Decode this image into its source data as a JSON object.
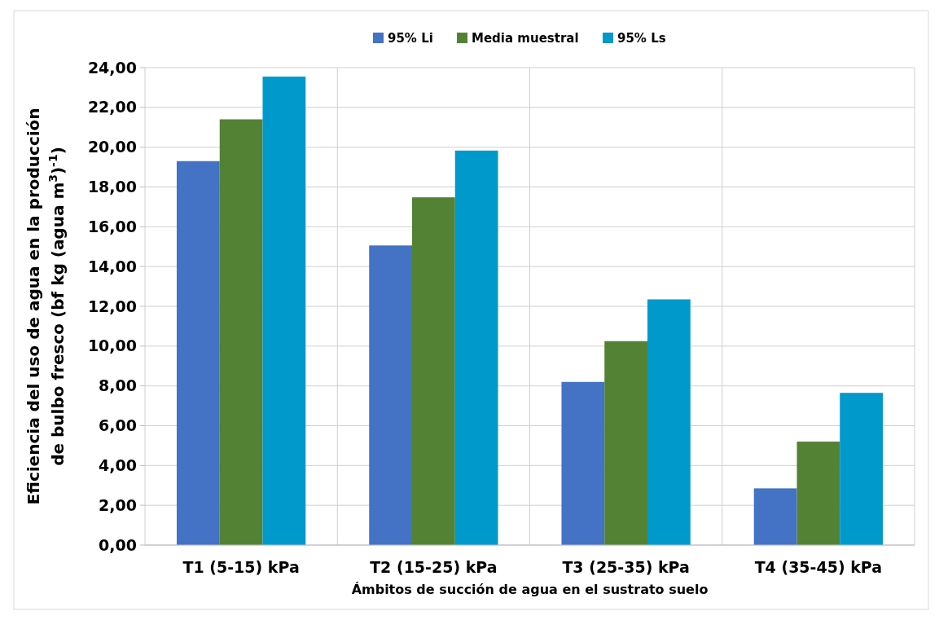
{
  "chart_data": {
    "type": "bar",
    "xlabel": "Ámbitos de succión de agua en el sustrato suelo",
    "ylabel": "Eficiencia del uso de agua en la producción de bulbo fresco (bf kg  (agua m$^{3}$)$^{-1}$)",
    "categories": [
      "T1 (5-15) kPa",
      "T2 (15-25) kPa",
      "T3 (25-35) kPa",
      "T4 (35-45) kPa"
    ],
    "series": [
      {
        "name": "95% Li",
        "color": "#4472c4",
        "values": [
          19.3,
          15.06,
          8.2,
          2.85
        ]
      },
      {
        "name": "Media muestral",
        "color": "#548235",
        "values": [
          21.4,
          17.48,
          10.25,
          5.2
        ]
      },
      {
        "name": "95% Ls",
        "color": "#0099cc",
        "values": [
          23.55,
          19.83,
          12.35,
          7.65
        ]
      }
    ],
    "ylim": [
      0,
      24
    ],
    "yticks": [
      {
        "value": 0,
        "label": "0,00"
      },
      {
        "value": 2,
        "label": "2,00"
      },
      {
        "value": 4,
        "label": "4,00"
      },
      {
        "value": 6,
        "label": "6,00"
      },
      {
        "value": 8,
        "label": "8,00"
      },
      {
        "value": 10,
        "label": "10,00"
      },
      {
        "value": 12,
        "label": "12,00"
      },
      {
        "value": 14,
        "label": "14,00"
      },
      {
        "value": 16,
        "label": "16,00"
      },
      {
        "value": 18,
        "label": "18,00"
      },
      {
        "value": 20,
        "label": "20,00"
      },
      {
        "value": 22,
        "label": "22,00"
      },
      {
        "value": 24,
        "label": "24,00"
      }
    ],
    "grid": true,
    "legend": "top"
  }
}
